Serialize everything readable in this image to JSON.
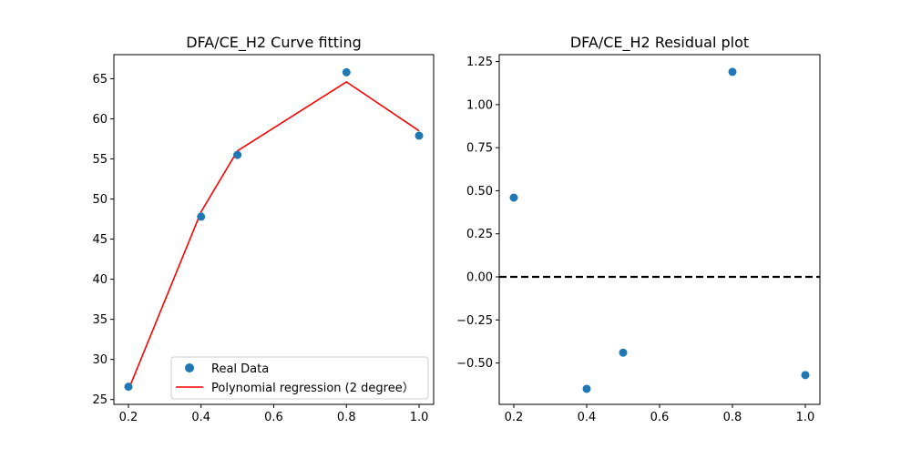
{
  "chart_data": [
    {
      "type": "scatter",
      "title": "DFA/CE_H2 Curve fitting",
      "xlabel": "",
      "ylabel": "",
      "xlim": [
        0.16,
        1.04
      ],
      "ylim": [
        24.4,
        68.0
      ],
      "xticks": [
        "0.2",
        "0.4",
        "0.6",
        "0.8",
        "1.0"
      ],
      "yticks": [
        "25",
        "30",
        "35",
        "40",
        "45",
        "50",
        "55",
        "60",
        "65"
      ],
      "legend_position": "lower-right",
      "series": [
        {
          "name": "Real Data",
          "kind": "scatter",
          "color": "#1f77b4",
          "x": [
            0.2,
            0.4,
            0.5,
            0.8,
            1.0
          ],
          "y": [
            26.6,
            47.8,
            55.5,
            65.8,
            57.9
          ]
        },
        {
          "name": "Polynomial regression (2 degree）",
          "kind": "line",
          "color": "#ff0000",
          "x": [
            0.2,
            0.4,
            0.5,
            0.8,
            1.0
          ],
          "y": [
            26.2,
            48.4,
            56.0,
            64.6,
            58.5
          ]
        }
      ]
    },
    {
      "type": "scatter",
      "title": "DFA/CE_H2 Residual plot",
      "xlabel": "",
      "ylabel": "",
      "xlim": [
        0.16,
        1.04
      ],
      "ylim": [
        -0.74,
        1.29
      ],
      "xticks": [
        "0.2",
        "0.4",
        "0.6",
        "0.8",
        "1.0"
      ],
      "yticks": [
        "−0.50",
        "−0.25",
        "0.00",
        "0.25",
        "0.50",
        "0.75",
        "1.00",
        "1.25"
      ],
      "reference_line": {
        "y": 0.0,
        "style": "dashed",
        "color": "#000000"
      },
      "series": [
        {
          "name": "",
          "kind": "scatter",
          "color": "#1f77b4",
          "x": [
            0.2,
            0.4,
            0.5,
            0.8,
            1.0
          ],
          "y": [
            0.46,
            -0.65,
            -0.44,
            1.19,
            -0.57
          ]
        }
      ]
    }
  ]
}
